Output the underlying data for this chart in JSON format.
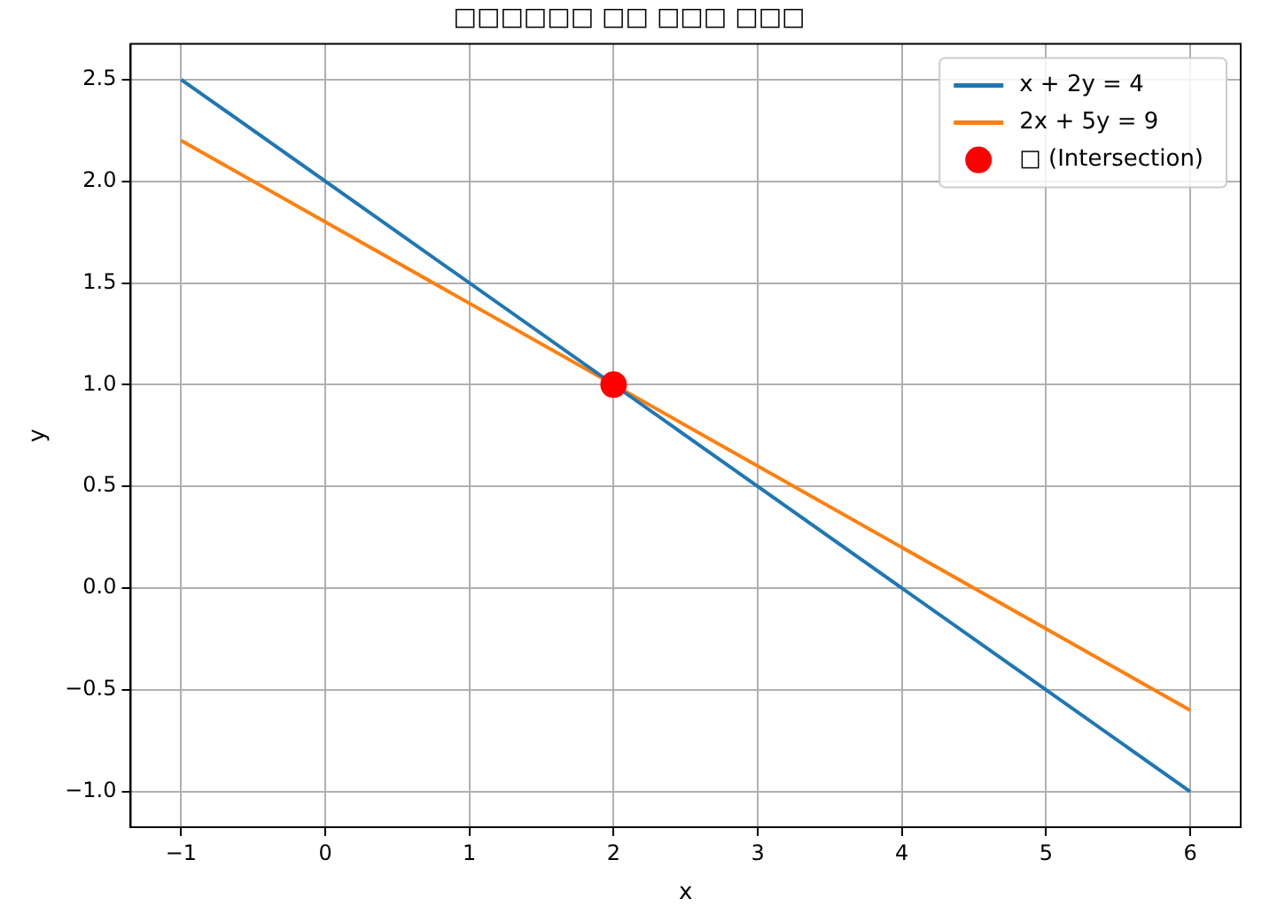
{
  "chart_data": {
    "type": "line",
    "title": "□□□□□□ □□ □□□ □□□",
    "xlabel": "x",
    "ylabel": "y",
    "series": [
      {
        "name": "x + 2y = 4",
        "color": "#1f77b4",
        "x": [
          -1,
          6
        ],
        "values": [
          2.5,
          -1
        ]
      },
      {
        "name": "2x + 5y = 9",
        "color": "#ff7f0e",
        "x": [
          -1,
          6
        ],
        "values": [
          2.2,
          -0.6
        ]
      },
      {
        "name": "□ (Intersection)",
        "color": "#ff0000",
        "type": "scatter",
        "marker": "circle",
        "x": [
          2
        ],
        "values": [
          1
        ]
      }
    ],
    "xlim": [
      -1.35,
      6.35
    ],
    "ylim": [
      -1.175,
      2.675
    ],
    "xticks": [
      {
        "value": -1,
        "label": "−1"
      },
      0,
      1,
      2,
      3,
      4,
      5,
      6
    ],
    "yticks": [
      {
        "value": -1,
        "label": "−1.0"
      },
      {
        "value": -0.5,
        "label": "−0.5"
      },
      {
        "value": 0,
        "label": "0.0"
      },
      {
        "value": 0.5,
        "label": "0.5"
      },
      {
        "value": 1,
        "label": "1.0"
      },
      {
        "value": 1.5,
        "label": "1.5"
      },
      {
        "value": 2,
        "label": "2.0"
      },
      {
        "value": 2.5,
        "label": "2.5"
      }
    ],
    "grid": true,
    "legend": "top right",
    "line_style": "solid"
  }
}
